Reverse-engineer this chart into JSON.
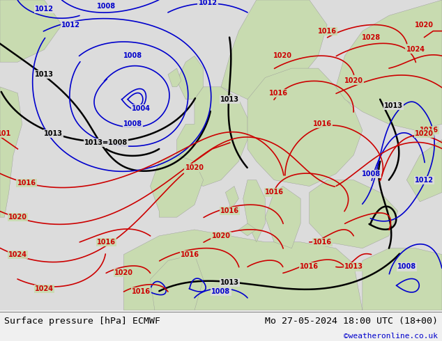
{
  "title_left": "Surface pressure [hPa] ECMWF",
  "title_right": "Mo 27-05-2024 18:00 UTC (18+00)",
  "credit": "©weatheronline.co.uk",
  "map_bg": "#dcdcdc",
  "land_color": "#c8dbb0",
  "ocean_color": "#dcdcdc",
  "footer_bg": "#f0f0f0",
  "fig_width": 6.34,
  "fig_height": 4.9,
  "title_fontsize": 9.5,
  "credit_fontsize": 8,
  "credit_color": "#0000cc",
  "black_lw": 1.8,
  "blue_lw": 1.2,
  "red_lw": 1.2,
  "label_fontsize": 7.0
}
